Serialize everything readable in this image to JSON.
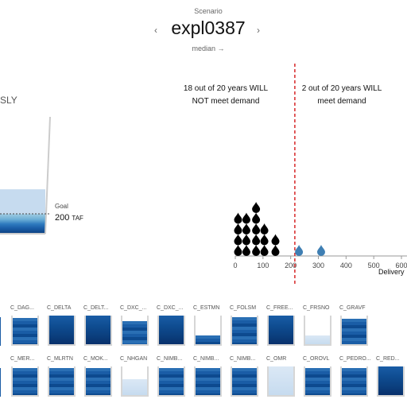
{
  "header": {
    "scenario_label": "Scenario",
    "scenario_name": "expl0387",
    "prev_icon": "‹",
    "next_icon": "›",
    "median_link": "median →"
  },
  "left_panel": {
    "title_fragment": "SLY",
    "goal_label": "Goal",
    "goal_value": "200",
    "goal_unit": "TAF",
    "fill_fraction": 0.38
  },
  "annotations": {
    "left": [
      "18 out of 20 years WILL",
      "NOT meet demand"
    ],
    "right": [
      "2 out of 20 years WILL",
      "meet demand"
    ]
  },
  "chart_data": {
    "type": "scatter",
    "title": "",
    "xlabel": "Delivery",
    "ylabel": "",
    "xlim": [
      0,
      600
    ],
    "xticks": [
      "0",
      "100",
      "200",
      "300",
      "400",
      "500",
      "600"
    ],
    "threshold": 215,
    "points_below": [
      {
        "x": 10,
        "count": 4
      },
      {
        "x": 40,
        "count": 4
      },
      {
        "x": 75,
        "count": 5
      },
      {
        "x": 105,
        "count": 3
      },
      {
        "x": 145,
        "count": 2
      }
    ],
    "points_above": [
      {
        "x": 230,
        "count": 1
      },
      {
        "x": 310,
        "count": 1
      }
    ],
    "colors": {
      "below": "#000000",
      "above": "#3f7fb3",
      "threshold": "#d62728",
      "axis": "#999999"
    }
  },
  "reservoirs_row1": [
    {
      "label": "C_DAG...",
      "fill": 0.92,
      "style": "mid"
    },
    {
      "label": "C_DELTA",
      "fill": 1.0,
      "style": "dark"
    },
    {
      "label": "C_DELT...",
      "fill": 1.0,
      "style": "dark"
    },
    {
      "label": "C_DXC_...",
      "fill": 0.8,
      "style": "mid"
    },
    {
      "label": "C_DXC_...",
      "fill": 1.0,
      "style": "dark"
    },
    {
      "label": "C_ESTMN",
      "fill": 0.3,
      "style": "mid"
    },
    {
      "label": "C_FOLSM",
      "fill": 0.95,
      "style": "mid"
    },
    {
      "label": "C_FREE...",
      "fill": 1.0,
      "style": "dark"
    },
    {
      "label": "C_FRSNO",
      "fill": 0.3,
      "style": "light"
    },
    {
      "label": "C_GRAVF",
      "fill": 0.9,
      "style": "mid"
    }
  ],
  "reservoirs_row2": [
    {
      "label": "C_MER...",
      "fill": 0.95,
      "style": "mid"
    },
    {
      "label": "C_MLRTN",
      "fill": 0.95,
      "style": "mid"
    },
    {
      "label": "C_MOK...",
      "fill": 0.95,
      "style": "mid"
    },
    {
      "label": "C_NHGAN",
      "fill": 0.55,
      "style": "light"
    },
    {
      "label": "C_NIMB...",
      "fill": 0.95,
      "style": "mid"
    },
    {
      "label": "C_NIMB...",
      "fill": 0.95,
      "style": "mid"
    },
    {
      "label": "C_NIMB...",
      "fill": 0.95,
      "style": "mid"
    },
    {
      "label": "C_OMR",
      "fill": 1.0,
      "style": "light"
    },
    {
      "label": "C_OROVL",
      "fill": 0.95,
      "style": "mid"
    },
    {
      "label": "C_PEDRO...",
      "fill": 0.95,
      "style": "mid"
    },
    {
      "label": "C_RED...",
      "fill": 1.0,
      "style": "dark"
    }
  ]
}
